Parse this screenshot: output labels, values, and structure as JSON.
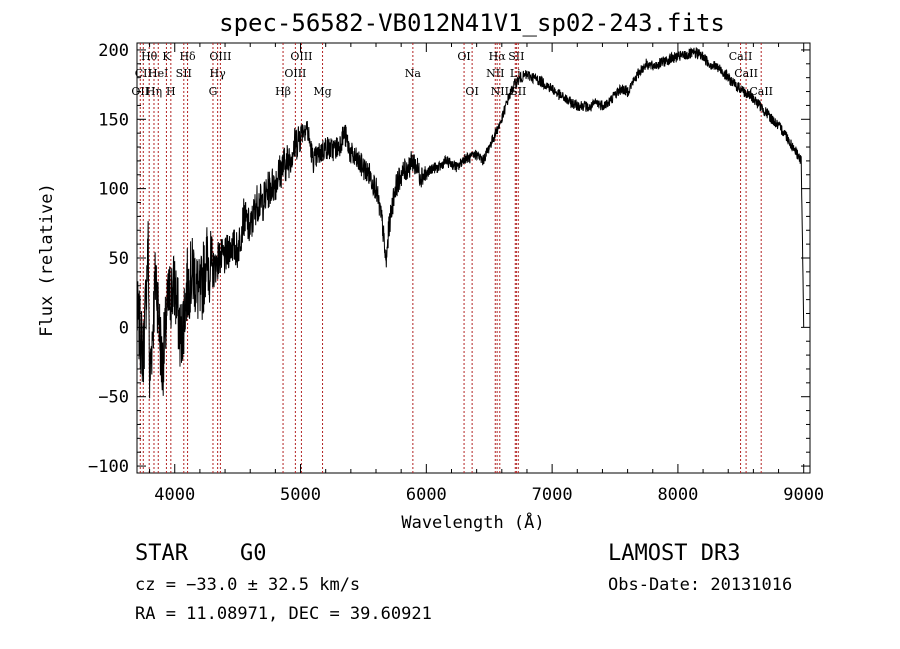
{
  "chart_data": {
    "type": "line",
    "title": "spec-56582-VB012N41V1_sp02-243.fits",
    "xlabel": "Wavelength (Å)",
    "ylabel": "Flux (relative)",
    "xlim": [
      3700,
      9050
    ],
    "ylim": [
      -105,
      205
    ],
    "x_ticks": [
      4000,
      5000,
      6000,
      7000,
      8000,
      9000
    ],
    "y_ticks": [
      -100,
      -50,
      0,
      50,
      100,
      150,
      200
    ],
    "grid": false,
    "series": [
      {
        "name": "flux",
        "points": [
          [
            3700,
            10
          ],
          [
            3750,
            -20
          ],
          [
            3790,
            60
          ],
          [
            3800,
            -40
          ],
          [
            3850,
            40
          ],
          [
            3900,
            -30
          ],
          [
            3950,
            20
          ],
          [
            4000,
            30
          ],
          [
            4050,
            -10
          ],
          [
            4100,
            30
          ],
          [
            4150,
            40
          ],
          [
            4200,
            20
          ],
          [
            4250,
            50
          ],
          [
            4300,
            40
          ],
          [
            4350,
            50
          ],
          [
            4400,
            50
          ],
          [
            4450,
            60
          ],
          [
            4500,
            55
          ],
          [
            4550,
            80
          ],
          [
            4600,
            70
          ],
          [
            4650,
            90
          ],
          [
            4700,
            90
          ],
          [
            4750,
            100
          ],
          [
            4800,
            105
          ],
          [
            4850,
            115
          ],
          [
            4900,
            120
          ],
          [
            4950,
            130
          ],
          [
            5000,
            140
          ],
          [
            5050,
            145
          ],
          [
            5100,
            120
          ],
          [
            5150,
            125
          ],
          [
            5200,
            130
          ],
          [
            5250,
            128
          ],
          [
            5300,
            130
          ],
          [
            5350,
            140
          ],
          [
            5400,
            125
          ],
          [
            5450,
            120
          ],
          [
            5500,
            115
          ],
          [
            5550,
            110
          ],
          [
            5600,
            100
          ],
          [
            5650,
            75
          ],
          [
            5680,
            45
          ],
          [
            5700,
            70
          ],
          [
            5750,
            100
          ],
          [
            5800,
            110
          ],
          [
            5850,
            115
          ],
          [
            5900,
            120
          ],
          [
            5950,
            110
          ],
          [
            6000,
            110
          ],
          [
            6050,
            115
          ],
          [
            6100,
            115
          ],
          [
            6150,
            120
          ],
          [
            6200,
            118
          ],
          [
            6250,
            115
          ],
          [
            6300,
            122
          ],
          [
            6350,
            122
          ],
          [
            6400,
            125
          ],
          [
            6450,
            120
          ],
          [
            6500,
            130
          ],
          [
            6550,
            140
          ],
          [
            6600,
            150
          ],
          [
            6650,
            165
          ],
          [
            6700,
            175
          ],
          [
            6750,
            180
          ],
          [
            6800,
            182
          ],
          [
            6850,
            180
          ],
          [
            6900,
            178
          ],
          [
            6950,
            175
          ],
          [
            7000,
            172
          ],
          [
            7050,
            168
          ],
          [
            7100,
            165
          ],
          [
            7150,
            162
          ],
          [
            7200,
            160
          ],
          [
            7250,
            160
          ],
          [
            7300,
            158
          ],
          [
            7350,
            162
          ],
          [
            7400,
            160
          ],
          [
            7450,
            162
          ],
          [
            7500,
            168
          ],
          [
            7550,
            172
          ],
          [
            7600,
            170
          ],
          [
            7650,
            178
          ],
          [
            7700,
            185
          ],
          [
            7750,
            190
          ],
          [
            7800,
            188
          ],
          [
            7850,
            190
          ],
          [
            7900,
            192
          ],
          [
            7950,
            194
          ],
          [
            8000,
            195
          ],
          [
            8050,
            196
          ],
          [
            8100,
            197
          ],
          [
            8150,
            198
          ],
          [
            8200,
            195
          ],
          [
            8250,
            190
          ],
          [
            8300,
            188
          ],
          [
            8350,
            185
          ],
          [
            8400,
            180
          ],
          [
            8450,
            175
          ],
          [
            8500,
            172
          ],
          [
            8550,
            168
          ],
          [
            8600,
            165
          ],
          [
            8650,
            160
          ],
          [
            8700,
            155
          ],
          [
            8750,
            150
          ],
          [
            8800,
            145
          ],
          [
            8850,
            140
          ],
          [
            8900,
            132
          ],
          [
            8950,
            125
          ],
          [
            8980,
            120
          ],
          [
            9000,
            0
          ]
        ]
      }
    ],
    "spectral_lines": [
      {
        "x": 3726,
        "label": "OII",
        "row": 3
      },
      {
        "x": 3750,
        "label": "CII",
        "row": 2
      },
      {
        "x": 3797,
        "label": "Hθ",
        "row": 1
      },
      {
        "x": 3835,
        "label": "Hη",
        "row": 3
      },
      {
        "x": 3869,
        "label": "HeI",
        "row": 2
      },
      {
        "x": 3934,
        "label": "K",
        "row": 1
      },
      {
        "x": 3969,
        "label": "H",
        "row": 3
      },
      {
        "x": 4072,
        "label": "SII",
        "row": 2
      },
      {
        "x": 4102,
        "label": "Hδ",
        "row": 1
      },
      {
        "x": 4304,
        "label": "G",
        "row": 3
      },
      {
        "x": 4341,
        "label": "Hγ",
        "row": 2
      },
      {
        "x": 4363,
        "label": "OIII",
        "row": 1
      },
      {
        "x": 4861,
        "label": "Hβ",
        "row": 3
      },
      {
        "x": 4959,
        "label": "OIII",
        "row": 2
      },
      {
        "x": 5007,
        "label": "OIII",
        "row": 1
      },
      {
        "x": 5175,
        "label": "Mg",
        "row": 3
      },
      {
        "x": 5893,
        "label": "Na",
        "row": 2
      },
      {
        "x": 6300,
        "label": "OI",
        "row": 1
      },
      {
        "x": 6364,
        "label": "OI",
        "row": 3
      },
      {
        "x": 6548,
        "label": "NII",
        "row": 2
      },
      {
        "x": 6563,
        "label": "Hα",
        "row": 1
      },
      {
        "x": 6584,
        "label": "NII",
        "row": 3
      },
      {
        "x": 6716,
        "label": "SII",
        "row": 1
      },
      {
        "x": 6707,
        "label": "Li",
        "row": 2
      },
      {
        "x": 6731,
        "label": "SII",
        "row": 3
      },
      {
        "x": 8498,
        "label": "CaII",
        "row": 1
      },
      {
        "x": 8542,
        "label": "CaII",
        "row": 2
      },
      {
        "x": 8662,
        "label": "CaII",
        "row": 3
      }
    ],
    "line_color": "#b22222"
  },
  "info": {
    "class": "STAR",
    "subclass": "G0",
    "survey": "LAMOST DR3",
    "cz": "cz = −33.0 ± 32.5 km/s",
    "obs_date": "Obs-Date: 20131016",
    "radec": "RA =  11.08971, DEC =  39.60921"
  }
}
